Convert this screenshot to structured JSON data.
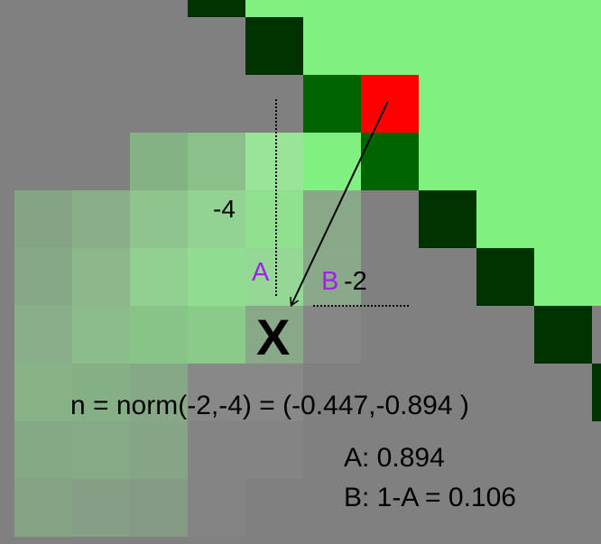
{
  "diagram": {
    "colors": {
      "background": "#808080",
      "bright_green": "#80f080",
      "dark_green": "#006400",
      "darkest_green": "#003300",
      "red": "#ff0000",
      "purple": "#a020f0"
    },
    "labels": {
      "neg4": "-4",
      "neg2": "-2",
      "a": "A",
      "b": "B",
      "x": "X"
    },
    "formula": "n = norm(-2,-4) = (-0.447,-0.894 )",
    "result_a": "A: 0.894",
    "result_b": "B: 1-A = 0.106"
  }
}
